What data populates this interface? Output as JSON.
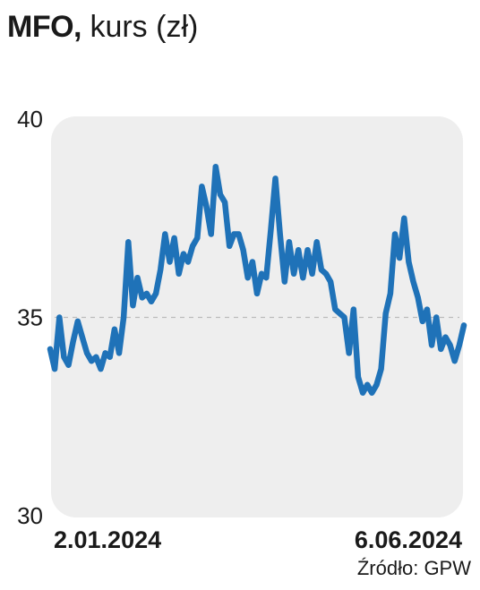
{
  "header": {
    "ticker": "MFO,",
    "subtitle": "kurs (zł)"
  },
  "footer": {
    "source": "Źródło: GPW"
  },
  "colors": {
    "line": "#1f72b8",
    "plot_background": "#eeeeee",
    "reference_line": "#bbbbbb"
  },
  "chart_data": {
    "type": "line",
    "title": "MFO, kurs (zł)",
    "ylim": [
      30,
      40
    ],
    "yticks": [
      "40",
      "35",
      "30"
    ],
    "ytick_values": [
      40,
      35,
      30
    ],
    "xlabels": [
      "2.01.2024",
      "6.06.2024"
    ],
    "reference_line_y": 35,
    "grid": false,
    "series": [
      {
        "values": [
          34.2,
          33.7,
          35.0,
          34.0,
          33.8,
          34.4,
          34.9,
          34.5,
          34.1,
          33.9,
          34.0,
          33.7,
          34.1,
          34.0,
          34.7,
          34.1,
          35.0,
          36.9,
          35.3,
          36.0,
          35.5,
          35.6,
          35.4,
          35.6,
          36.2,
          37.1,
          36.4,
          37.0,
          36.1,
          36.6,
          36.4,
          36.8,
          37.0,
          38.3,
          37.8,
          37.1,
          38.8,
          38.1,
          37.9,
          36.8,
          37.1,
          37.1,
          36.7,
          36.0,
          36.4,
          35.6,
          36.1,
          36.0,
          37.2,
          38.5,
          37.1,
          35.9,
          36.9,
          36.1,
          36.7,
          36.0,
          36.7,
          36.1,
          36.9,
          36.2,
          36.1,
          35.9,
          35.2,
          35.1,
          35.0,
          34.1,
          35.2,
          33.5,
          33.1,
          33.3,
          33.1,
          33.3,
          33.7,
          35.1,
          35.6,
          37.1,
          36.5,
          37.5,
          36.4,
          35.9,
          35.5,
          34.9,
          35.2,
          34.3,
          35.0,
          34.2,
          34.5,
          34.3,
          33.9,
          34.3,
          34.8
        ]
      }
    ]
  }
}
